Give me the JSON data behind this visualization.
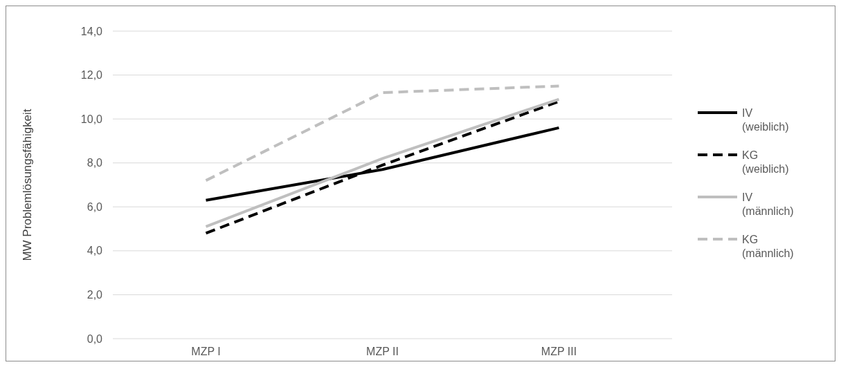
{
  "chart_data": {
    "type": "line",
    "ylabel": "MW Problemlösungsfähigkeit",
    "categories": [
      "MZP I",
      "MZP II",
      "MZP III"
    ],
    "series": [
      {
        "name": "IV (weiblich)",
        "color": "#000000",
        "line_style": "solid",
        "values": [
          6.3,
          7.7,
          9.6
        ]
      },
      {
        "name": "KG (weiblich)",
        "color": "#000000",
        "line_style": "dashed",
        "values": [
          4.8,
          7.9,
          10.8
        ]
      },
      {
        "name": "IV (männlich)",
        "color": "#bfbfbf",
        "line_style": "solid",
        "values": [
          5.1,
          8.2,
          10.9
        ]
      },
      {
        "name": "KG (männlich)",
        "color": "#bfbfbf",
        "line_style": "dashed",
        "values": [
          7.2,
          11.2,
          11.5
        ]
      }
    ],
    "ylim": [
      0,
      14
    ],
    "yticks": [
      {
        "value": 0,
        "label": "0,0"
      },
      {
        "value": 2,
        "label": "2,0"
      },
      {
        "value": 4,
        "label": "4,0"
      },
      {
        "value": 6,
        "label": "6,0"
      },
      {
        "value": 8,
        "label": "8,0"
      },
      {
        "value": 10,
        "label": "10,0"
      },
      {
        "value": 12,
        "label": "12,0"
      },
      {
        "value": 14,
        "label": "14,0"
      }
    ],
    "grid": "y",
    "legend": "right",
    "marker": "none"
  }
}
